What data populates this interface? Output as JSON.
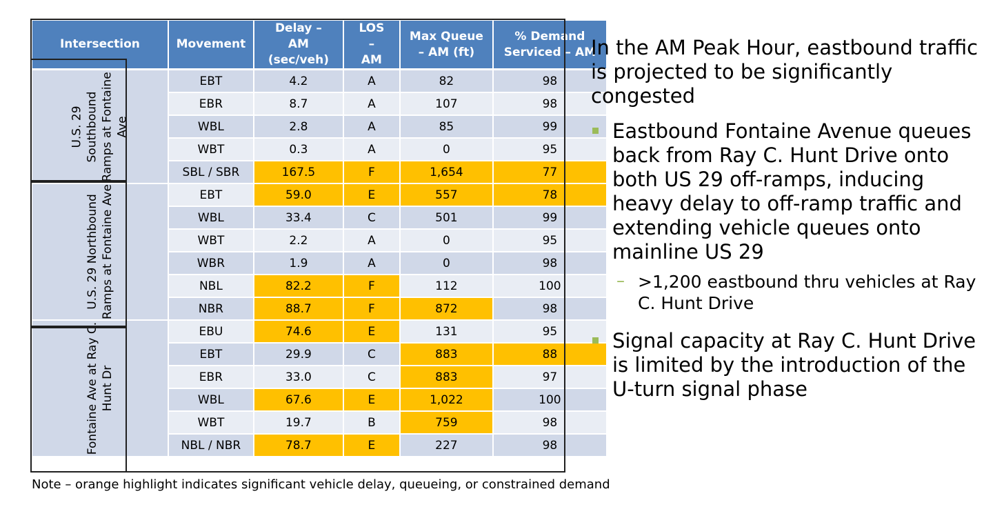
{
  "headers": [
    "Intersection",
    "Movement",
    "Delay – AM (sec/veh)",
    "LOS – AM",
    "Max Queue – AM (ft)",
    "% Demand Serviced – AM"
  ],
  "groups": [
    {
      "lines": [
        "U.S. 29",
        "Southbound",
        "Ramps at Fontaine",
        "Ave"
      ],
      "rows": [
        {
          "movement": "EBT",
          "delay": "4.2",
          "los": "A",
          "queue": "82",
          "demand": "98",
          "highlight": []
        },
        {
          "movement": "EBR",
          "delay": "8.7",
          "los": "A",
          "queue": "107",
          "demand": "98",
          "highlight": []
        },
        {
          "movement": "WBL",
          "delay": "2.8",
          "los": "A",
          "queue": "85",
          "demand": "99",
          "highlight": []
        },
        {
          "movement": "WBT",
          "delay": "0.3",
          "los": "A",
          "queue": "0",
          "demand": "95",
          "highlight": []
        },
        {
          "movement": "SBL / SBR",
          "delay": "167.5",
          "los": "F",
          "queue": "1,654",
          "demand": "77",
          "highlight": [
            "delay",
            "los",
            "queue",
            "demand"
          ]
        }
      ]
    },
    {
      "lines": [
        "U.S. 29 Northbound",
        "Ramps at Fontaine Ave"
      ],
      "rows": [
        {
          "movement": "EBT",
          "delay": "59.0",
          "los": "E",
          "queue": "557",
          "demand": "78",
          "highlight": [
            "delay",
            "los",
            "queue",
            "demand"
          ]
        },
        {
          "movement": "WBL",
          "delay": "33.4",
          "los": "C",
          "queue": "501",
          "demand": "99",
          "highlight": []
        },
        {
          "movement": "WBT",
          "delay": "2.2",
          "los": "A",
          "queue": "0",
          "demand": "95",
          "highlight": []
        },
        {
          "movement": "WBR",
          "delay": "1.9",
          "los": "A",
          "queue": "0",
          "demand": "98",
          "highlight": []
        },
        {
          "movement": "NBL",
          "delay": "82.2",
          "los": "F",
          "queue": "112",
          "demand": "100",
          "highlight": [
            "delay",
            "los"
          ]
        },
        {
          "movement": "NBR",
          "delay": "88.7",
          "los": "F",
          "queue": "872",
          "demand": "98",
          "highlight": [
            "delay",
            "los",
            "queue"
          ]
        }
      ]
    },
    {
      "lines": [
        "Fontaine Ave at Ray C.",
        "Hunt Dr"
      ],
      "rows": [
        {
          "movement": "EBU",
          "delay": "74.6",
          "los": "E",
          "queue": "131",
          "demand": "95",
          "highlight": [
            "delay",
            "los"
          ]
        },
        {
          "movement": "EBT",
          "delay": "29.9",
          "los": "C",
          "queue": "883",
          "demand": "88",
          "highlight": [
            "queue",
            "demand"
          ]
        },
        {
          "movement": "EBR",
          "delay": "33.0",
          "los": "C",
          "queue": "883",
          "demand": "97",
          "highlight": [
            "queue"
          ]
        },
        {
          "movement": "WBL",
          "delay": "67.6",
          "los": "E",
          "queue": "1,022",
          "demand": "100",
          "highlight": [
            "delay",
            "los",
            "queue"
          ]
        },
        {
          "movement": "WBT",
          "delay": "19.7",
          "los": "B",
          "queue": "759",
          "demand": "98",
          "highlight": [
            "queue"
          ]
        },
        {
          "movement": "NBL / NBR",
          "delay": "78.7",
          "los": "E",
          "queue": "227",
          "demand": "98",
          "highlight": [
            "delay",
            "los"
          ]
        }
      ]
    }
  ],
  "note": "Note – orange highlight indicates significant vehicle delay, queueing, or constrained demand",
  "panel": {
    "heading": "In the AM Peak Hour, eastbound traffic is projected to be significantly congested",
    "bullet1": "Eastbound Fontaine Avenue queues back from Ray C. Hunt Drive onto both US 29 off-ramps, inducing heavy delay to off-ramp traffic and extending vehicle queues onto mainline US 29",
    "sub1": ">1,200 eastbound thru vehicles at Ray C. Hunt Drive",
    "bullet2": "Signal capacity at Ray C. Hunt Drive is limited by the introduction of the U-turn signal phase"
  },
  "colors": {
    "header": "#4f81bd",
    "row_dark": "#d0d8e8",
    "row_light": "#e9edf4",
    "highlight": "#ffc000",
    "bullet": "#9bbb59"
  }
}
